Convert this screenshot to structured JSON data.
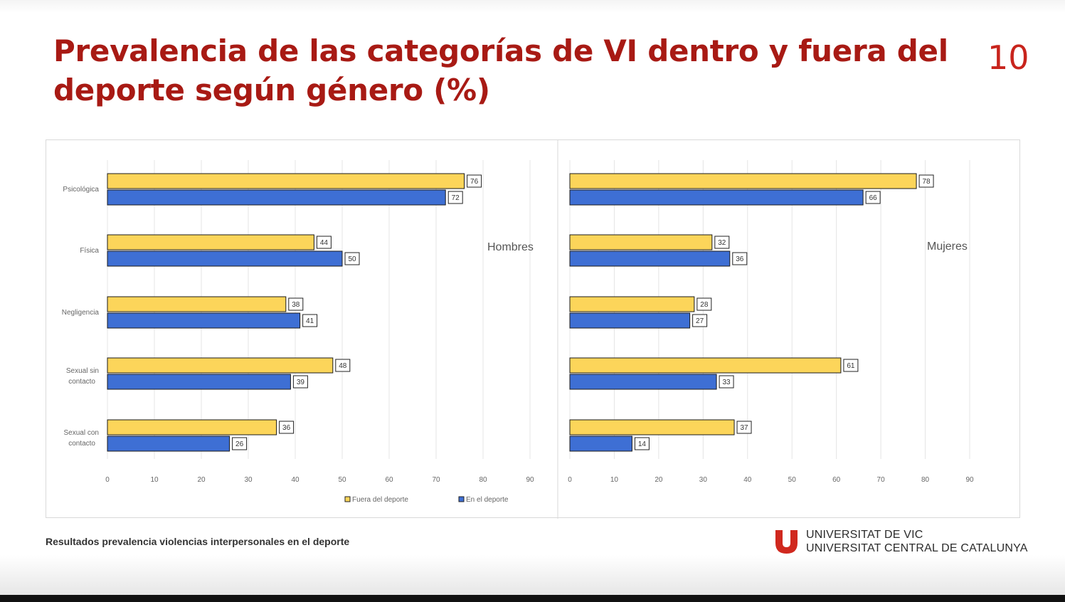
{
  "slide": {
    "title": "Prevalencia de las categorías de VI dentro y fuera del deporte según género (%)",
    "page_number": "10",
    "footer": "Resultados prevalencia violencias interpersonales en el deporte",
    "university": {
      "line1": "UNIVERSITAT DE VIC",
      "line2": "UNIVERSITAT CENTRAL DE CATALUNYA"
    }
  },
  "colors": {
    "title": "#a81a14",
    "fuera": "#fcd55a",
    "en": "#3e6fd4",
    "accent_red": "#d0281e"
  },
  "chart_data": [
    {
      "type": "bar",
      "orientation": "horizontal",
      "panel_label": "Hombres",
      "categories": [
        "Psicológica",
        "Física",
        "Negligencia",
        "Sexual sin contacto",
        "Sexual con contacto"
      ],
      "series": [
        {
          "name": "Fuera del deporte",
          "values": [
            76,
            44,
            38,
            48,
            36
          ]
        },
        {
          "name": "En el deporte",
          "values": [
            72,
            50,
            41,
            39,
            26
          ]
        }
      ],
      "xlim": [
        0,
        90
      ],
      "xticks": [
        0,
        10,
        20,
        30,
        40,
        50,
        60,
        70,
        80,
        90
      ],
      "grid": true,
      "data_labels": true
    },
    {
      "type": "bar",
      "orientation": "horizontal",
      "panel_label": "Mujeres",
      "categories": [
        "Psicológica",
        "Física",
        "Negligencia",
        "Sexual sin contacto",
        "Sexual con contacto"
      ],
      "series": [
        {
          "name": "Fuera del deporte",
          "values": [
            78,
            32,
            28,
            61,
            37
          ]
        },
        {
          "name": "En el deporte",
          "values": [
            66,
            36,
            27,
            33,
            14
          ]
        }
      ],
      "xlim": [
        0,
        90
      ],
      "xticks": [
        0,
        10,
        20,
        30,
        40,
        50,
        60,
        70,
        80,
        90
      ],
      "grid": true,
      "data_labels": true
    }
  ],
  "legend": {
    "items": [
      "Fuera del deporte",
      "En el deporte"
    ],
    "placement": "bottom"
  }
}
